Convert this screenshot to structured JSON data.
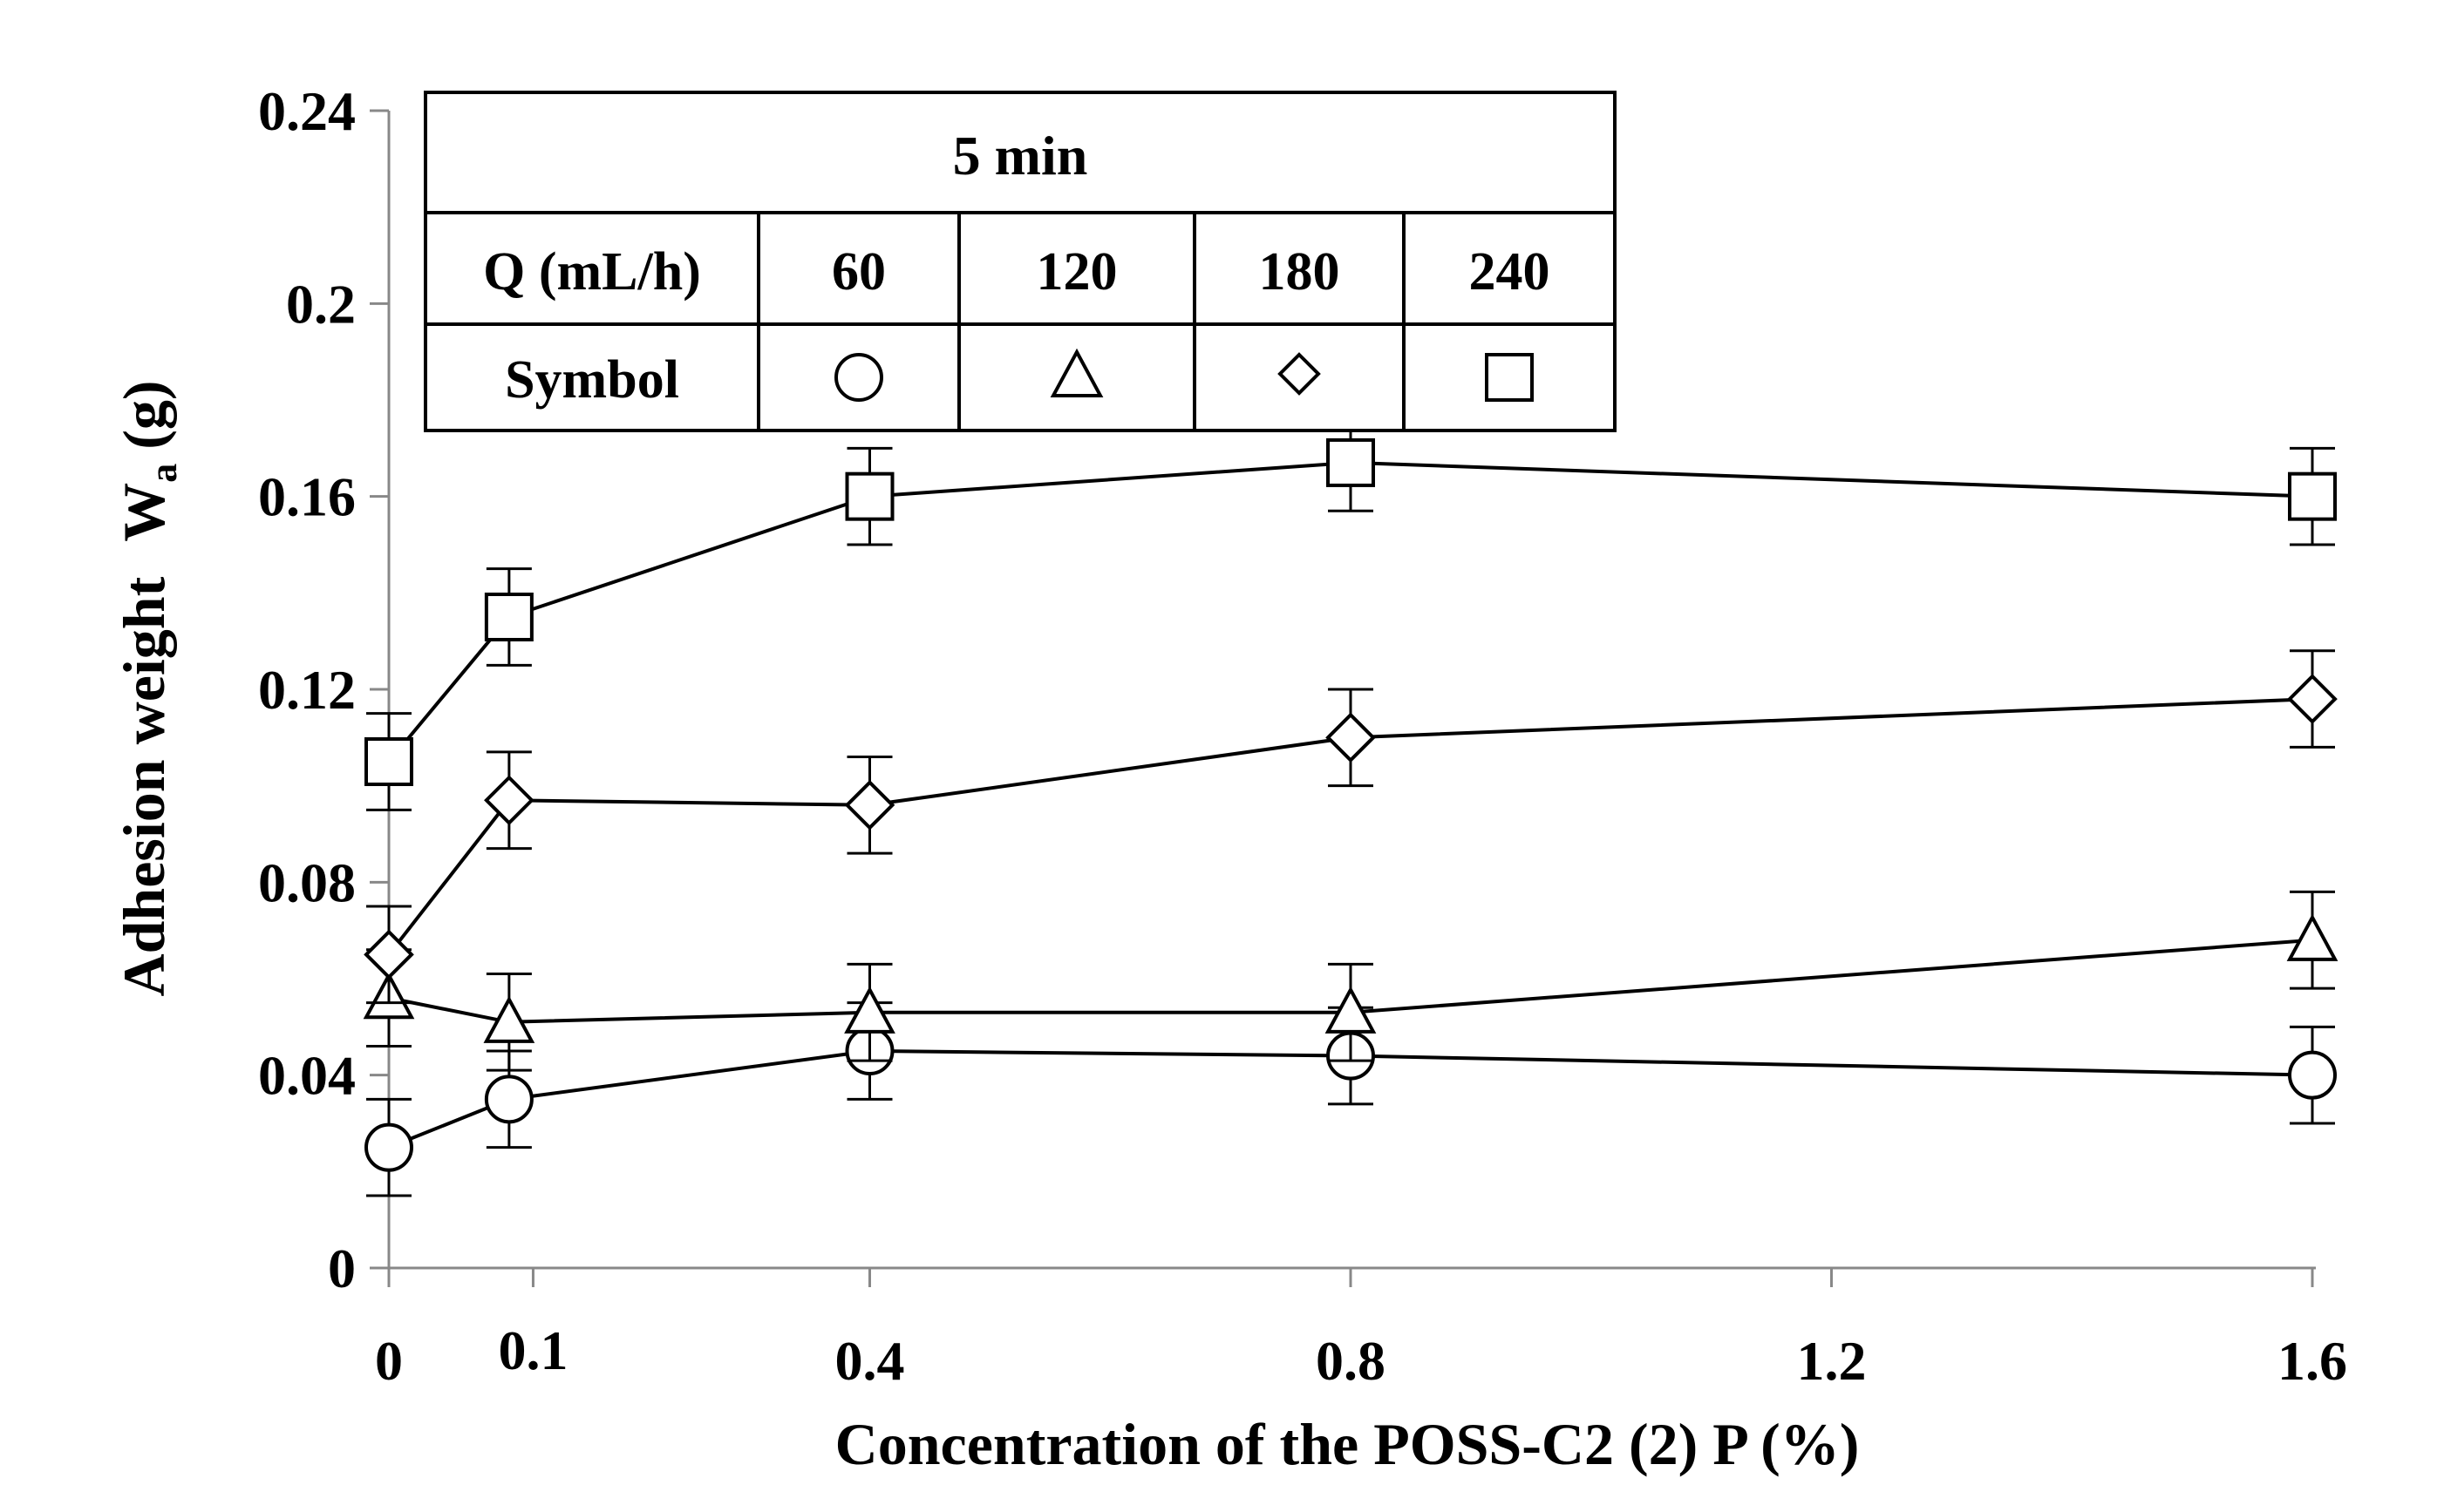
{
  "chart_data": {
    "type": "line",
    "xlabel": "Concentration of the POSS-C2 (2) P (%)",
    "ylabel": "Adhesion weight",
    "ylabel_symbol": "W",
    "ylabel_subscript": "a",
    "ylabel_unit": "(g)",
    "x_ticks": [
      "0",
      "0.1",
      "0.4",
      "0.8",
      "1.2",
      "1.6"
    ],
    "x_tick_values": [
      0,
      0.12,
      0.4,
      0.8,
      1.2,
      1.6
    ],
    "y_ticks": [
      "0",
      "0.04",
      "0.08",
      "0.12",
      "0.16",
      "0.2",
      "0.24"
    ],
    "y_tick_values": [
      0,
      0.04,
      0.08,
      0.12,
      0.16,
      0.2,
      0.24
    ],
    "xlim": [
      0,
      1.6
    ],
    "ylim": [
      0,
      0.24
    ],
    "x": [
      0,
      0.1,
      0.4,
      0.8,
      1.6
    ],
    "error": 0.01,
    "series": [
      {
        "name": "60",
        "symbol": "circle",
        "values": [
          0.025,
          0.035,
          0.045,
          0.044,
          0.04
        ]
      },
      {
        "name": "120",
        "symbol": "triangle",
        "values": [
          0.056,
          0.051,
          0.053,
          0.053,
          0.068
        ]
      },
      {
        "name": "180",
        "symbol": "diamond",
        "values": [
          0.065,
          0.097,
          0.096,
          0.11,
          0.118
        ]
      },
      {
        "name": "240",
        "symbol": "square",
        "values": [
          0.105,
          0.135,
          0.16,
          0.167,
          0.16
        ]
      }
    ],
    "legend": {
      "title": "5 min",
      "row1_label": "Q (mL/h)",
      "row2_label": "Symbol",
      "columns": [
        "60",
        "120",
        "180",
        "240"
      ],
      "symbols": [
        "circle",
        "triangle",
        "diamond",
        "square"
      ]
    }
  }
}
